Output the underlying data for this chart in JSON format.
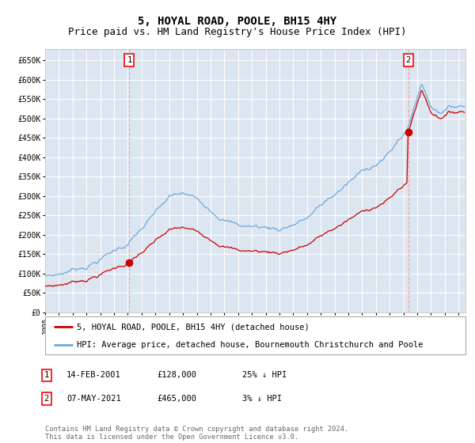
{
  "title": "5, HOYAL ROAD, POOLE, BH15 4HY",
  "subtitle": "Price paid vs. HM Land Registry's House Price Index (HPI)",
  "ylim": [
    0,
    680000
  ],
  "yticks": [
    0,
    50000,
    100000,
    150000,
    200000,
    250000,
    300000,
    350000,
    400000,
    450000,
    500000,
    550000,
    600000,
    650000
  ],
  "ytick_labels": [
    "£0",
    "£50K",
    "£100K",
    "£150K",
    "£200K",
    "£250K",
    "£300K",
    "£350K",
    "£400K",
    "£450K",
    "£500K",
    "£550K",
    "£600K",
    "£650K"
  ],
  "plot_bg_color": "#dce6f1",
  "grid_color": "#ffffff",
  "hpi_color": "#6fa8dc",
  "price_color": "#cc0000",
  "sale1_year": 2001.11,
  "sale1_price": 128000,
  "sale2_year": 2021.35,
  "sale2_price": 465000,
  "legend_label_price": "5, HOYAL ROAD, POOLE, BH15 4HY (detached house)",
  "legend_label_hpi": "HPI: Average price, detached house, Bournemouth Christchurch and Poole",
  "table_row1": [
    "1",
    "14-FEB-2001",
    "£128,000",
    "25% ↓ HPI"
  ],
  "table_row2": [
    "2",
    "07-MAY-2021",
    "£465,000",
    "3% ↓ HPI"
  ],
  "footnote": "Contains HM Land Registry data © Crown copyright and database right 2024.\nThis data is licensed under the Open Government Licence v3.0.",
  "title_fontsize": 10,
  "subtitle_fontsize": 9
}
